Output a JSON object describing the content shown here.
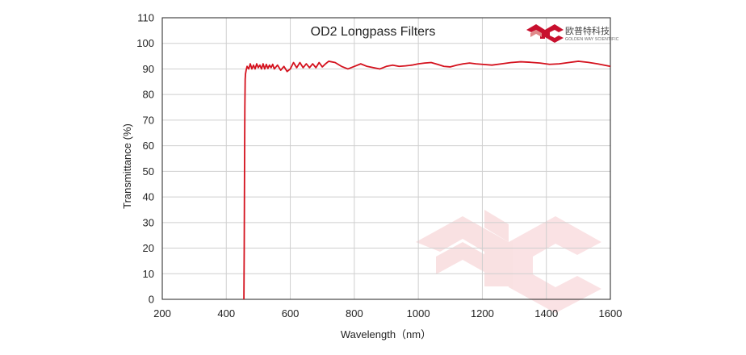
{
  "chart_data": {
    "type": "line",
    "title": "OD2  Longpass Filters",
    "xlabel": "Wavelength（nm）",
    "ylabel": "Transmittance  (%)",
    "xlim": [
      200,
      1600
    ],
    "ylim": [
      0,
      110
    ],
    "xticks": [
      200,
      400,
      600,
      800,
      1000,
      1200,
      1400,
      1600
    ],
    "yticks": [
      0,
      10,
      20,
      30,
      40,
      50,
      60,
      70,
      80,
      90,
      100,
      110
    ],
    "grid": true,
    "legend": "none",
    "line_color": "#d4111d",
    "series": [
      {
        "x": [
          455,
          456,
          457,
          458,
          459,
          460,
          462,
          465,
          470,
          475,
          480,
          485,
          490,
          495,
          500,
          505,
          510,
          515,
          520,
          525,
          530,
          535,
          540,
          545,
          550,
          560,
          570,
          580,
          590,
          600,
          610,
          620,
          630,
          640,
          650,
          660,
          670,
          680,
          690,
          700,
          710,
          720,
          740,
          760,
          780,
          800,
          820,
          840,
          860,
          880,
          900,
          920,
          940,
          960,
          980,
          1000,
          1020,
          1040,
          1060,
          1080,
          1100,
          1120,
          1140,
          1160,
          1180,
          1200,
          1230,
          1260,
          1290,
          1320,
          1350,
          1380,
          1410,
          1440,
          1470,
          1500,
          1530,
          1560,
          1600
        ],
        "y": [
          0,
          20,
          50,
          75,
          86,
          88,
          89.5,
          91,
          90,
          92,
          90,
          91.5,
          90,
          92,
          90.5,
          91.5,
          90,
          92,
          90,
          91.8,
          90.2,
          91.5,
          90.5,
          91.8,
          90,
          91.5,
          89.5,
          91,
          89,
          90,
          92.5,
          90.5,
          92.5,
          90.5,
          92,
          90.5,
          92,
          90.5,
          92.5,
          90.8,
          92,
          93,
          92.5,
          91,
          90,
          91,
          92,
          91,
          90.5,
          90,
          91,
          91.5,
          91,
          91.2,
          91.5,
          92,
          92.3,
          92.5,
          91.8,
          91,
          90.8,
          91.5,
          92,
          92.3,
          92,
          91.8,
          91.5,
          92,
          92.5,
          92.8,
          92.6,
          92.3,
          91.8,
          92,
          92.5,
          93,
          92.6,
          92,
          91
        ]
      }
    ]
  },
  "logo": {
    "cn": "欧普特科技",
    "en": "GOLDEN WAY SCIENTIFIC",
    "colors": [
      "#c8102e",
      "#e08a8a"
    ]
  }
}
